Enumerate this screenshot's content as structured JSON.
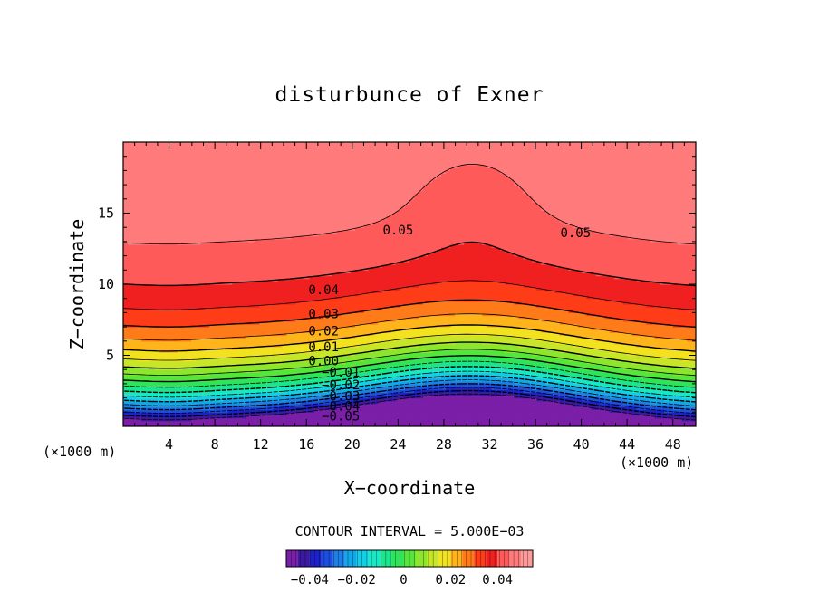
{
  "chart_data": {
    "type": "heatmap",
    "title": "disturbunce of Exner",
    "xlabel": "X−coordinate",
    "ylabel": "Z−coordinate",
    "x_unit": "(×1000 m)",
    "y_unit": "(×1000 m)",
    "xlim": [
      0,
      50
    ],
    "ylim": [
      0,
      20
    ],
    "x_ticks": [
      4,
      8,
      12,
      16,
      20,
      24,
      28,
      32,
      36,
      40,
      44,
      48
    ],
    "y_ticks": [
      5,
      10,
      15
    ],
    "contour_interval_text": "CONTOUR INTERVAL = 5.000E−03",
    "contour_labels": [
      {
        "value": "0.05",
        "x": 24,
        "z": 13.5
      },
      {
        "value": "0.05",
        "x": 39.5,
        "z": 13.3
      },
      {
        "value": "0.04",
        "x": 17.5,
        "z": 9.3
      },
      {
        "value": "0.03",
        "x": 17.5,
        "z": 7.6
      },
      {
        "value": "0.02",
        "x": 17.5,
        "z": 6.4
      },
      {
        "value": "0.01",
        "x": 17.5,
        "z": 5.3
      },
      {
        "value": "0.00",
        "x": 17.5,
        "z": 4.3
      },
      {
        "value": "−0.01",
        "x": 19,
        "z": 3.5
      },
      {
        "value": "−0.02",
        "x": 19,
        "z": 2.6
      },
      {
        "value": "−0.03",
        "x": 19,
        "z": 1.8
      },
      {
        "value": "−0.04",
        "x": 19,
        "z": 1.1
      },
      {
        "value": "−0.05",
        "x": 19,
        "z": 0.4
      }
    ],
    "colorbar": {
      "min": -0.05,
      "max": 0.055,
      "tick_labels": [
        "−0.04",
        "−0.02",
        "0",
        "0.02",
        "0.04"
      ],
      "tick_values": [
        -0.04,
        -0.02,
        0,
        0.02,
        0.04
      ]
    },
    "levels": [
      -0.05,
      -0.045,
      -0.04,
      -0.035,
      -0.03,
      -0.025,
      -0.02,
      -0.015,
      -0.01,
      -0.005,
      0,
      0.005,
      0.01,
      0.015,
      0.02,
      0.025,
      0.03,
      0.035,
      0.04,
      0.045,
      0.05
    ],
    "level_colors": [
      "#7a1fa8",
      "#3c1aa0",
      "#1d22c8",
      "#1c4fe0",
      "#1e7fe6",
      "#12a7e8",
      "#13cfe6",
      "#17e8c6",
      "#1be58d",
      "#2ee55a",
      "#54e63a",
      "#8ce62c",
      "#c6e627",
      "#f2e21f",
      "#ffb41c",
      "#ff7a18",
      "#ff3c18",
      "#f02020",
      "#ff5a5a",
      "#ff7a7a",
      "#ff9a9a"
    ],
    "blank_region_label": "",
    "note": ""
  }
}
